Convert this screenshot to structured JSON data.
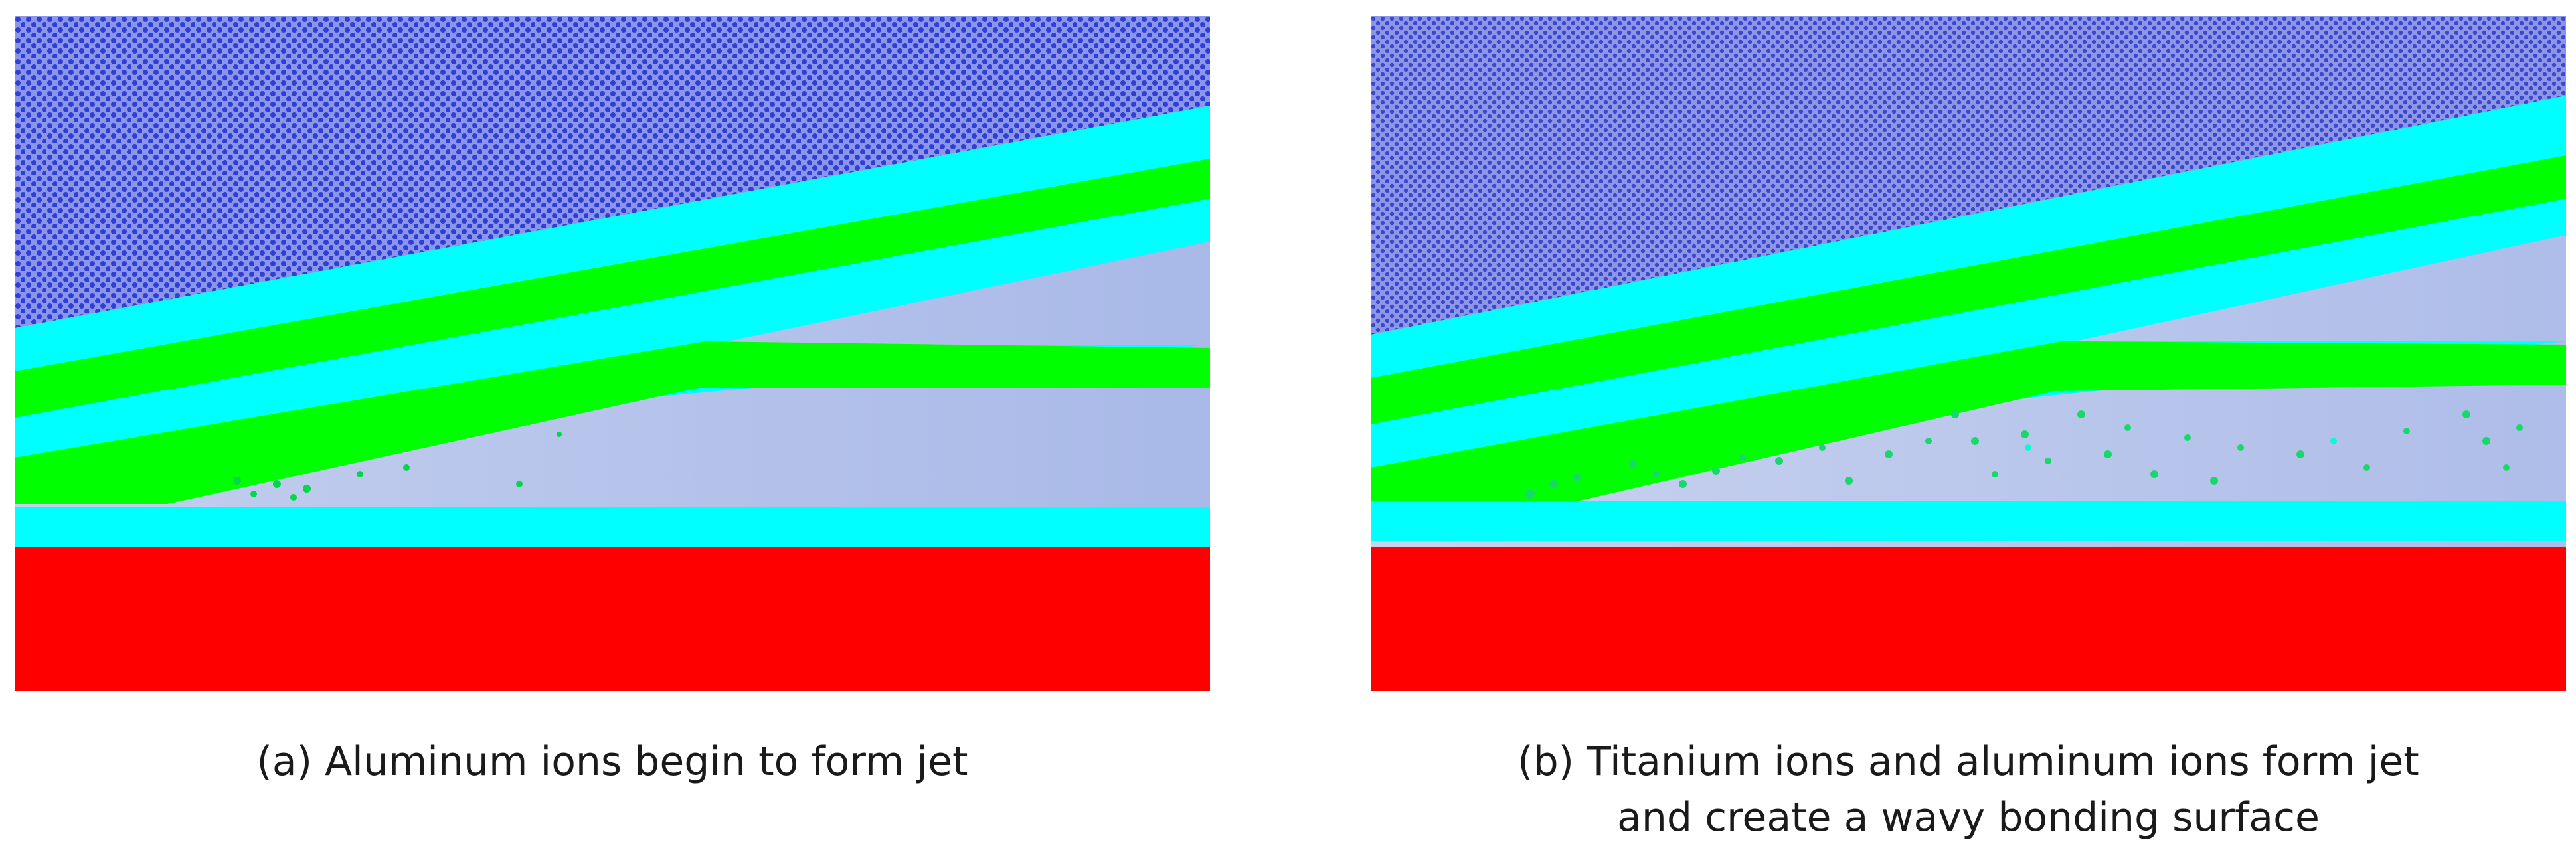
{
  "figure": {
    "panels": [
      {
        "id": "a",
        "caption_lines": [
          "(a) Aluminum ions begin to form jet"
        ]
      },
      {
        "id": "b",
        "caption_lines": [
          "(b) Titanium ions and aluminum ions form jet",
          "and create a wavy bonding surface"
        ]
      }
    ],
    "colors": {
      "upper_plate_atoms": "#2f3fd6",
      "upper_plate_background": "#7d88e6",
      "interface_layer": "#00ffff",
      "jet_ions": "#00ff00",
      "base_plate": "#ff0000",
      "gap_region": "#b9c8ec"
    }
  }
}
